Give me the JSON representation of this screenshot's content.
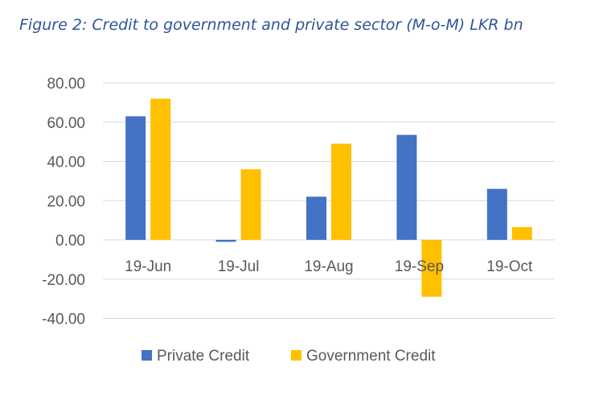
{
  "chart_data": {
    "type": "bar",
    "title": "Figure 2: Credit to government and private sector (M-o-M) LKR bn",
    "categories": [
      "19-Jun",
      "19-Jul",
      "19-Aug",
      "19-Sep",
      "19-Oct"
    ],
    "series": [
      {
        "name": "Private Credit",
        "color": "#4472C4",
        "values": [
          63.0,
          -1.0,
          22.0,
          53.5,
          26.0
        ]
      },
      {
        "name": "Government Credit",
        "color": "#FFC000",
        "values": [
          72.0,
          36.0,
          49.0,
          -29.0,
          6.5
        ]
      }
    ],
    "yticks": [
      "80.00",
      "60.00",
      "40.00",
      "20.00",
      "0.00",
      "-20.00",
      "-40.00"
    ],
    "ylim": [
      -40,
      80
    ],
    "ystep": 20,
    "grid": true,
    "legend": "bottom"
  }
}
